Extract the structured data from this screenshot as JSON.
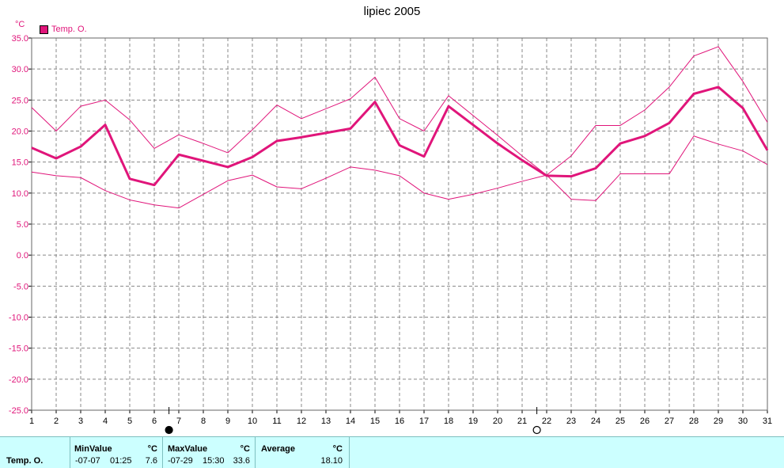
{
  "title": "lipiec 2005",
  "unit_label": "°C",
  "legend": {
    "label": "Temp. O.",
    "color": "#e0157a"
  },
  "colors": {
    "series": "#e0157a",
    "grid": "#888888",
    "stats_bg": "#ccffff"
  },
  "chart_data": {
    "type": "line",
    "title": "lipiec 2005",
    "ylabel": "°C",
    "xlabel": "",
    "x": [
      1,
      2,
      3,
      4,
      5,
      6,
      7,
      8,
      9,
      10,
      11,
      12,
      13,
      14,
      15,
      16,
      17,
      18,
      19,
      20,
      21,
      22,
      23,
      24,
      25,
      26,
      27,
      28,
      29,
      30,
      31
    ],
    "xlim": [
      1,
      31
    ],
    "ylim": [
      -25,
      35
    ],
    "y_ticks": [
      "35.0",
      "30.0",
      "25.0",
      "20.0",
      "15.0",
      "10.0",
      "5.0",
      "0.0",
      "-5.0",
      "-10.0",
      "-15.0",
      "-20.0",
      "-25.0"
    ],
    "grid": true,
    "legend_position": "top-left",
    "series": [
      {
        "name": "Temp. O.",
        "role": "average",
        "values": [
          17.3,
          15.6,
          17.5,
          21.0,
          12.3,
          11.3,
          16.2,
          15.2,
          14.2,
          15.8,
          18.4,
          19.0,
          19.7,
          20.4,
          24.7,
          17.7,
          15.9,
          24.0,
          21.0,
          18.0,
          15.3,
          12.8,
          12.7,
          14.0,
          18.0,
          19.2,
          21.3,
          26.0,
          27.1,
          23.7,
          16.9
        ]
      },
      {
        "role": "max",
        "values": [
          23.8,
          20.0,
          24.0,
          25.0,
          21.8,
          17.2,
          19.4,
          18.0,
          16.5,
          20.2,
          24.2,
          22.0,
          23.6,
          25.2,
          28.7,
          22.0,
          20.0,
          25.7,
          22.5,
          19.3,
          16.0,
          12.9,
          16.0,
          20.9,
          20.9,
          23.4,
          27.1,
          32.1,
          33.6,
          28.0,
          21.4
        ]
      },
      {
        "role": "min",
        "values": [
          13.4,
          12.8,
          12.5,
          10.4,
          8.9,
          8.1,
          7.6,
          9.8,
          12.0,
          12.9,
          11.0,
          10.7,
          12.4,
          14.2,
          13.7,
          12.8,
          10.0,
          9.0,
          9.8,
          10.8,
          11.9,
          12.9,
          9.0,
          8.8,
          13.1,
          13.1,
          13.1,
          19.2,
          17.9,
          16.8,
          14.6
        ]
      }
    ],
    "markers": [
      {
        "day": 6.6,
        "symbol": "filled-circle"
      },
      {
        "day": 21.6,
        "symbol": "open-circle"
      }
    ]
  },
  "stats": {
    "series_label": "Temp. O.",
    "min": {
      "header": "MinValue",
      "unit": "°C",
      "date": "-07-07",
      "time": "01:25",
      "value": "7.6"
    },
    "max": {
      "header": "MaxValue",
      "unit": "°C",
      "date": "-07-29",
      "time": "15:30",
      "value": "33.6"
    },
    "avg": {
      "header": "Average",
      "unit": "°C",
      "value": "18.10"
    }
  }
}
